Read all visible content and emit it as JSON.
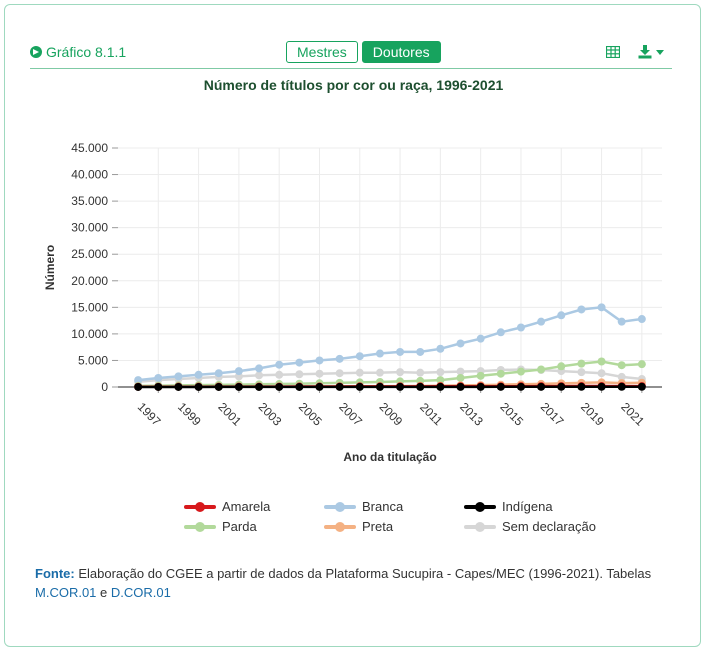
{
  "header": {
    "graph_label": "Gráfico 8.1.1",
    "tabs": [
      {
        "label": "Mestres",
        "active": false
      },
      {
        "label": "Doutores",
        "active": true
      }
    ],
    "accent_color": "#17a35e"
  },
  "chart_data": {
    "type": "line",
    "title": "Número de títulos por cor ou raça, 1996-2021",
    "xlabel": "Ano da titulação",
    "ylabel": "Número",
    "ylim": [
      0,
      45000
    ],
    "yticks": [
      0,
      5000,
      10000,
      15000,
      20000,
      25000,
      30000,
      35000,
      40000,
      45000
    ],
    "ytick_labels": [
      "0",
      "5.000",
      "10.000",
      "15.000",
      "20.000",
      "25.000",
      "30.000",
      "35.000",
      "40.000",
      "45.000"
    ],
    "xtick_labels": [
      "1997",
      "1999",
      "2001",
      "2003",
      "2005",
      "2007",
      "2009",
      "2011",
      "2013",
      "2015",
      "2017",
      "2019",
      "2021"
    ],
    "x": [
      1996,
      1997,
      1998,
      1999,
      2000,
      2001,
      2002,
      2003,
      2004,
      2005,
      2006,
      2007,
      2008,
      2009,
      2010,
      2011,
      2012,
      2013,
      2014,
      2015,
      2016,
      2017,
      2018,
      2019,
      2020,
      2021
    ],
    "grid": true,
    "legend_position": "bottom",
    "series": [
      {
        "name": "Amarela",
        "color": "#d7191c",
        "values": [
          50,
          50,
          60,
          60,
          70,
          70,
          80,
          80,
          90,
          90,
          100,
          110,
          110,
          120,
          120,
          130,
          140,
          150,
          150,
          160,
          170,
          170,
          180,
          180,
          170,
          170
        ]
      },
      {
        "name": "Branca",
        "color": "#abc9e3",
        "values": [
          1300,
          1700,
          2000,
          2300,
          2600,
          3000,
          3500,
          4200,
          4600,
          5000,
          5300,
          5800,
          6300,
          6600,
          6600,
          7200,
          8200,
          9100,
          10300,
          11200,
          12300,
          13500,
          14600,
          15000,
          12300,
          12800
        ]
      },
      {
        "name": "Indígena",
        "color": "#000000",
        "values": [
          5,
          5,
          5,
          5,
          10,
          10,
          10,
          10,
          10,
          15,
          15,
          15,
          20,
          20,
          20,
          20,
          25,
          25,
          30,
          30,
          35,
          40,
          40,
          45,
          40,
          40
        ]
      },
      {
        "name": "Parda",
        "color": "#b2d99b",
        "values": [
          200,
          250,
          300,
          350,
          400,
          450,
          500,
          560,
          620,
          700,
          780,
          860,
          950,
          1050,
          1150,
          1300,
          1700,
          2100,
          2500,
          2900,
          3300,
          3900,
          4400,
          4800,
          4100,
          4300
        ]
      },
      {
        "name": "Preta",
        "color": "#f4b183",
        "values": [
          30,
          35,
          40,
          45,
          50,
          60,
          70,
          80,
          90,
          100,
          110,
          130,
          150,
          170,
          190,
          220,
          300,
          360,
          430,
          500,
          580,
          680,
          780,
          860,
          740,
          800
        ]
      },
      {
        "name": "Sem declaração",
        "color": "#d6d6d6",
        "values": [
          1000,
          1300,
          1500,
          1700,
          1900,
          2000,
          2200,
          2300,
          2400,
          2500,
          2600,
          2700,
          2700,
          2800,
          2700,
          2800,
          2900,
          3000,
          3200,
          3300,
          3200,
          3000,
          2800,
          2600,
          1900,
          1500
        ]
      }
    ]
  },
  "footer": {
    "fonte_label": "Fonte:",
    "text": " Elaboração do CGEE a partir de dados da Plataforma Sucupira - Capes/MEC (1996-2021). Tabelas ",
    "link1": "M.COR.01",
    "and": " e ",
    "link2": "D.COR.01"
  }
}
